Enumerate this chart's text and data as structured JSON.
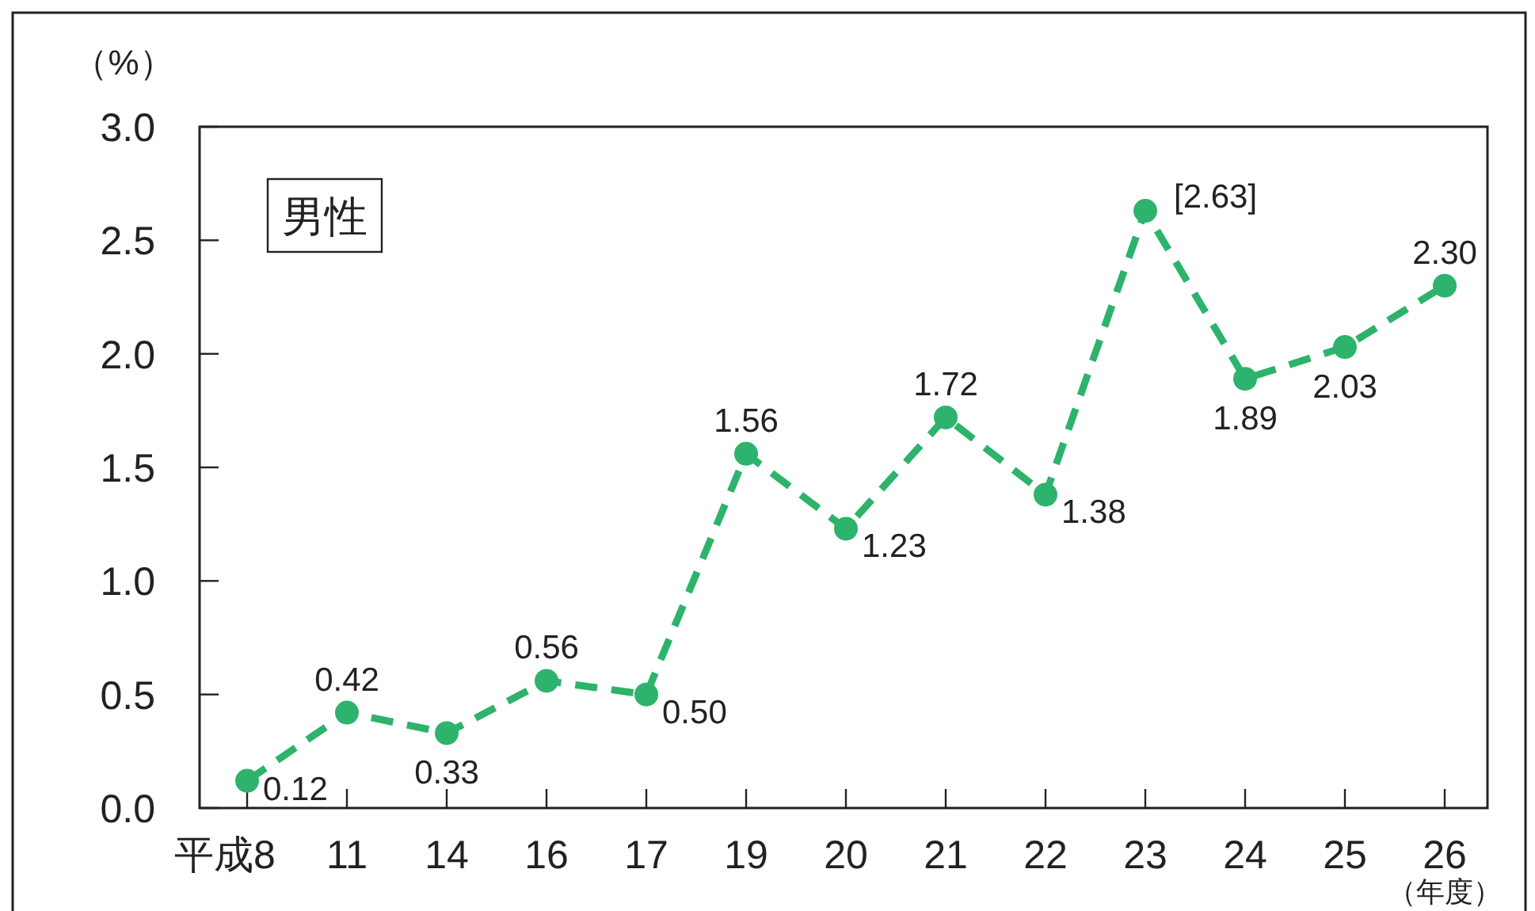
{
  "chart_data": {
    "type": "line",
    "title": "男性",
    "ylabel": "（%）",
    "xlabel": "（年度）",
    "categories": [
      "平成8",
      "11",
      "14",
      "16",
      "17",
      "19",
      "20",
      "21",
      "22",
      "23",
      "24",
      "25",
      "26"
    ],
    "values": [
      0.12,
      0.42,
      0.33,
      0.56,
      0.5,
      1.56,
      1.23,
      1.72,
      1.38,
      2.63,
      1.89,
      2.03,
      2.3
    ],
    "value_labels": [
      "0.12",
      "0.42",
      "0.33",
      "0.56",
      "0.50",
      "1.56",
      "1.23",
      "1.72",
      "1.38",
      "[2.63]",
      "1.89",
      "2.03",
      "2.30"
    ],
    "color": "#2db36b",
    "ylim": [
      0,
      3
    ],
    "yticks": [
      "0.0",
      "0.5",
      "1.0",
      "1.5",
      "2.0",
      "2.5",
      "3.0"
    ],
    "marker": "circle",
    "line_style": "dashed",
    "grid": false
  }
}
